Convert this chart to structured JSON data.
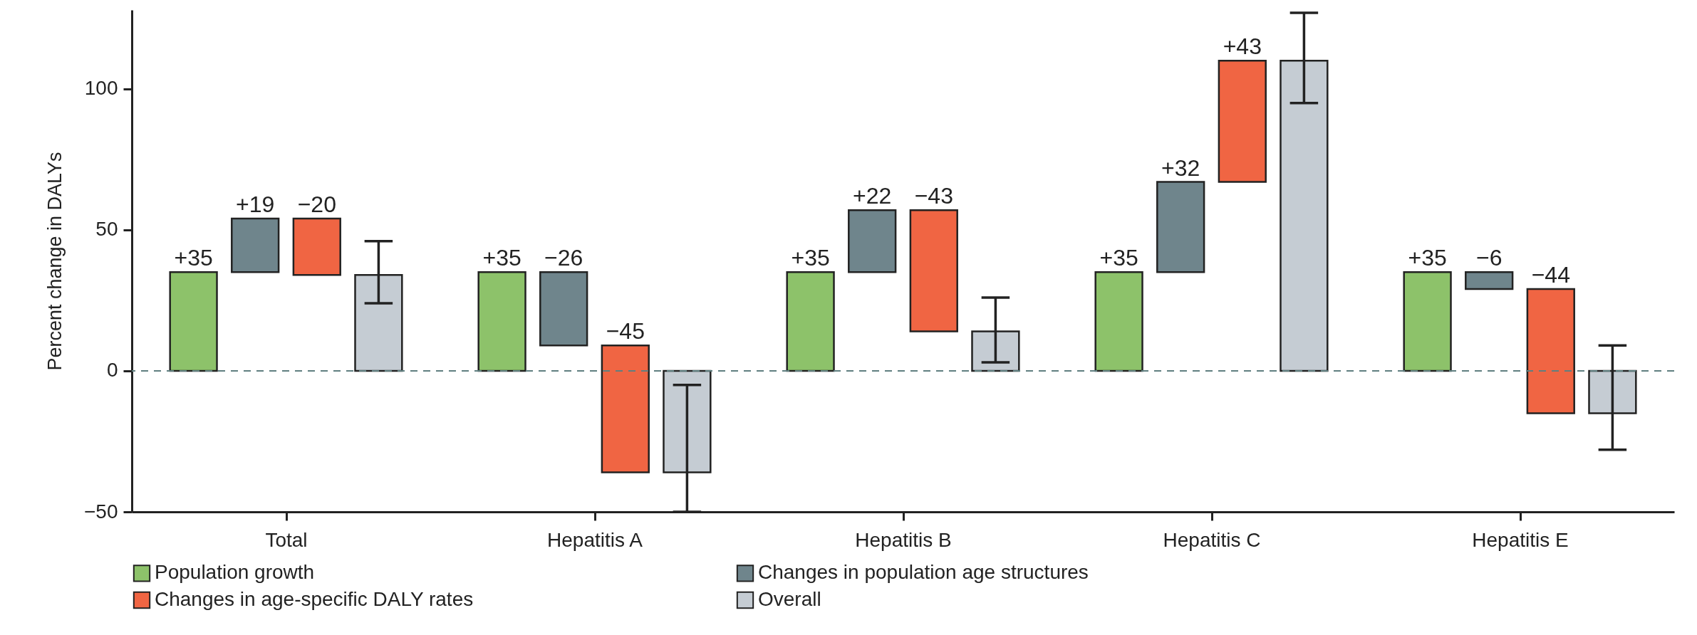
{
  "chart_data": {
    "type": "bar",
    "categories": [
      "Total",
      "Hepatitis A",
      "Hepatitis B",
      "Hepatitis C",
      "Hepatitis E"
    ],
    "ylabel": "Percent change in DALYs",
    "ylim": [
      -50,
      128
    ],
    "yticks": [
      -50,
      0,
      50,
      100
    ],
    "legend": "bottom left",
    "series": [
      {
        "name": "Population growth",
        "color": "#8dc26a",
        "base": [
          0,
          0,
          0,
          0,
          0
        ],
        "values": [
          35,
          35,
          35,
          35,
          35
        ],
        "value_labels": [
          "+35",
          "+35",
          "+35",
          "+35",
          "+35"
        ]
      },
      {
        "name": "Changes in population age structures",
        "color": "#6f858c",
        "base": [
          35,
          35,
          35,
          35,
          35
        ],
        "values": [
          19,
          -26,
          22,
          32,
          -6
        ],
        "value_labels": [
          "+19",
          "−26",
          "+22",
          "+32",
          "−6"
        ]
      },
      {
        "name": "Changes in age-specific DALY rates",
        "color": "#f06543",
        "base": [
          54,
          9,
          57,
          67,
          29
        ],
        "values": [
          -20,
          -45,
          -43,
          43,
          -44
        ],
        "value_labels": [
          "−20",
          "−45",
          "−43",
          "+43",
          "−44"
        ]
      },
      {
        "name": "Overall",
        "color": "#c5ccd3",
        "values": [
          34,
          -36,
          14,
          110,
          -15
        ],
        "errors": [
          [
            24,
            46
          ],
          [
            -50,
            -5
          ],
          [
            3,
            26
          ],
          [
            95,
            127
          ],
          [
            -28,
            9
          ]
        ]
      }
    ],
    "ref_lines": [
      {
        "axis": "y",
        "value": 0,
        "line_style": "dashed",
        "color": "#5f7f80"
      }
    ]
  }
}
